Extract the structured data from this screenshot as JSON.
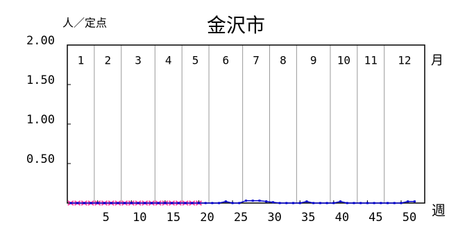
{
  "chart_data": {
    "type": "line",
    "title": "金沢市",
    "y_label": "人／定点",
    "x_label": "週",
    "month_axis_label": "月",
    "month_labels": [
      "1",
      "2",
      "3",
      "4",
      "5",
      "6",
      "7",
      "8",
      "9",
      "10",
      "11",
      "12"
    ],
    "month_boundaries": [
      4.5,
      8.5,
      13.5,
      17.5,
      21.5,
      26.5,
      30.5,
      34.5,
      39.5,
      43.5,
      47.5
    ],
    "x": [
      1,
      2,
      3,
      4,
      5,
      6,
      7,
      8,
      9,
      10,
      11,
      12,
      13,
      14,
      15,
      16,
      17,
      18,
      19,
      20,
      21,
      22,
      23,
      24,
      25,
      26,
      27,
      28,
      29,
      30,
      31,
      32,
      33,
      34,
      35,
      36,
      37,
      38,
      39,
      40,
      41,
      42,
      43,
      44,
      45,
      46,
      47,
      48,
      49,
      50,
      51,
      52
    ],
    "series": [
      {
        "color": "#ff3399",
        "marker": "x",
        "values": [
          0,
          0,
          0,
          0,
          0,
          0,
          0,
          0,
          0,
          0,
          0,
          0,
          0,
          0,
          0,
          0,
          0,
          0,
          0,
          0,
          null,
          null,
          null,
          null,
          null,
          null,
          null,
          null,
          null,
          null,
          null,
          null,
          null,
          null,
          null,
          null,
          null,
          null,
          null,
          null,
          null,
          null,
          null,
          null,
          null,
          null,
          null,
          null,
          null,
          null,
          null,
          null
        ]
      },
      {
        "color": "#0000cc",
        "marker": "dot",
        "values": [
          0,
          0,
          0,
          0,
          0,
          0,
          0,
          0,
          0,
          0,
          0,
          0,
          0,
          0,
          0,
          0,
          0,
          0,
          0,
          0,
          0,
          0,
          0,
          0.02,
          0,
          0,
          0.03,
          0.03,
          0.03,
          0.02,
          0.01,
          0,
          0,
          0,
          0,
          0.02,
          0,
          0,
          0,
          0,
          0.02,
          0,
          0,
          0,
          0,
          0,
          0,
          0,
          0,
          0,
          0.02,
          0.02
        ]
      }
    ],
    "xlim": [
      0.5,
      53.5
    ],
    "ylim": [
      0,
      2
    ],
    "xticks": [
      5,
      10,
      15,
      20,
      25,
      30,
      35,
      40,
      45,
      50
    ],
    "yticks": [
      {
        "value": 0.5,
        "label": "0.50"
      },
      {
        "value": 1,
        "label": "1.00"
      },
      {
        "value": 1.5,
        "label": "1.50"
      },
      {
        "value": 2,
        "label": "2.00"
      }
    ]
  }
}
